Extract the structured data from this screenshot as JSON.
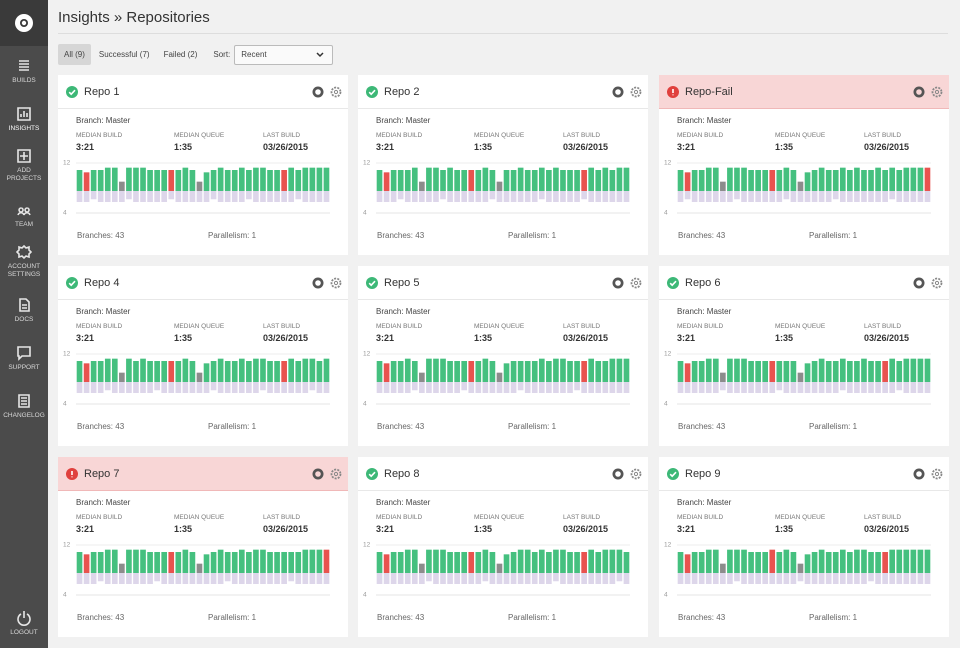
{
  "sidebar": {
    "items": [
      "BUILDS",
      "INSIGHTS",
      "ADD PROJECTS",
      "TEAM",
      "ACCOUNT SETTINGS",
      "DOCS",
      "SUPPORT",
      "CHANGELOG"
    ],
    "logout": "LOGOUT"
  },
  "header": {
    "title": "Insights » Repositories"
  },
  "filters": {
    "tabs": [
      "All (9)",
      "Successful (7)",
      "Failed (2)"
    ],
    "sort_label": "Sort:",
    "sort_value": "Recent"
  },
  "stat_labels": [
    "MEDIAN BUILD",
    "MEDIAN QUEUE",
    "LAST BUILD"
  ],
  "cards": [
    {
      "name": "Repo 1",
      "status": "success",
      "branch": "Branch: Master",
      "stats": [
        "3:21",
        "1:35",
        "03/26/2015"
      ],
      "branches": "Branches: 43",
      "parallelism": "Parallelism: 1",
      "chart": {
        "ylim": [
          0,
          12
        ],
        "yticks": [
          12
        ],
        "queue_ylim": [
          0,
          4
        ],
        "queue_ticks": [
          4
        ],
        "results": "sfssssnssssssfsssnsssssssssssfssssss",
        "build_times": [
          9,
          8,
          9,
          9,
          10,
          10,
          4,
          10,
          10,
          10,
          9,
          9,
          9,
          9,
          9,
          10,
          9,
          4,
          8,
          9,
          10,
          9,
          9,
          10,
          9,
          10,
          10,
          9,
          9,
          9,
          10,
          9,
          10,
          10,
          10,
          10
        ],
        "queue_times": [
          2,
          2,
          1.5,
          2,
          2,
          2,
          2,
          1.5,
          2,
          2,
          2,
          2,
          2,
          1.5,
          2,
          2,
          2,
          2,
          2,
          1.5,
          2,
          2,
          2,
          2,
          1.5,
          2,
          2,
          2,
          2,
          2,
          2,
          1.5,
          2,
          2,
          2,
          2
        ]
      }
    },
    {
      "name": "Repo 2",
      "status": "success",
      "branch": "Branch: Master",
      "stats": [
        "3:21",
        "1:35",
        "03/26/2015"
      ],
      "branches": "Branches: 43",
      "parallelism": "Parallelism: 1",
      "chart": {
        "ylim": [
          0,
          12
        ],
        "yticks": [
          12
        ],
        "queue_ylim": [
          0,
          4
        ],
        "queue_ticks": [
          4
        ],
        "results": "sfssssnssssssfsssnsssssssssssfssssss",
        "build_times": [
          9,
          8,
          9,
          9,
          9,
          10,
          4,
          10,
          10,
          9,
          10,
          9,
          9,
          9,
          9,
          10,
          9,
          4,
          9,
          9,
          10,
          9,
          9,
          10,
          9,
          10,
          9,
          9,
          9,
          9,
          10,
          9,
          10,
          9,
          10,
          10
        ],
        "queue_times": [
          2,
          2,
          2,
          1.5,
          2,
          2,
          2,
          2,
          2,
          1.5,
          2,
          2,
          2,
          2,
          2,
          2,
          1.5,
          2,
          2,
          2,
          2,
          2,
          2,
          1.5,
          2,
          2,
          2,
          2,
          2,
          1.5,
          2,
          2,
          2,
          2,
          2,
          2
        ]
      }
    },
    {
      "name": "Repo-Fail",
      "status": "failed",
      "branch": "Branch: Master",
      "stats": [
        "3:21",
        "1:35",
        "03/26/2015"
      ],
      "branches": "Branches: 43",
      "parallelism": "Parallelism: 1",
      "chart": {
        "ylim": [
          0,
          12
        ],
        "yticks": [
          12
        ],
        "queue_ylim": [
          0,
          4
        ],
        "queue_ticks": [
          4
        ],
        "results": "sfssssnssssssfsssnsssssssssssssssssf",
        "build_times": [
          9,
          8,
          9,
          9,
          10,
          10,
          4,
          10,
          10,
          10,
          9,
          9,
          9,
          9,
          9,
          10,
          9,
          4,
          8,
          9,
          10,
          9,
          9,
          10,
          9,
          10,
          9,
          9,
          10,
          9,
          10,
          9,
          10,
          10,
          10,
          10
        ],
        "queue_times": [
          2,
          1.5,
          2,
          2,
          2,
          2,
          2,
          2,
          1.5,
          2,
          2,
          2,
          2,
          2,
          2,
          1.5,
          2,
          2,
          2,
          2,
          2,
          2,
          1.5,
          2,
          2,
          2,
          2,
          2,
          2,
          2,
          1.5,
          2,
          2,
          2,
          2,
          2
        ]
      }
    },
    {
      "name": "Repo 4",
      "status": "success",
      "branch": "Branch: Master",
      "stats": [
        "3:21",
        "1:35",
        "03/26/2015"
      ],
      "branches": "Branches: 43",
      "parallelism": "Parallelism: 1",
      "chart": {
        "ylim": [
          0,
          12
        ],
        "yticks": [
          12
        ],
        "queue_ylim": [
          0,
          4
        ],
        "queue_ticks": [
          4
        ],
        "results": "sfssssnssssssfsssnsssssssssssfssssss",
        "build_times": [
          9,
          8,
          9,
          9,
          10,
          10,
          4,
          10,
          9,
          10,
          9,
          9,
          9,
          9,
          9,
          10,
          9,
          4,
          8,
          9,
          10,
          9,
          9,
          10,
          9,
          10,
          10,
          9,
          9,
          9,
          10,
          9,
          10,
          10,
          9,
          10
        ],
        "queue_times": [
          2,
          2,
          2,
          2,
          1.5,
          2,
          2,
          2,
          2,
          2,
          2,
          1.5,
          2,
          2,
          2,
          2,
          2,
          2,
          2,
          1.5,
          2,
          2,
          2,
          2,
          2,
          2,
          1.5,
          2,
          2,
          2,
          2,
          2,
          2,
          1.5,
          2,
          2
        ]
      }
    },
    {
      "name": "Repo 5",
      "status": "success",
      "branch": "Branch: Master",
      "stats": [
        "3:21",
        "1:35",
        "03/26/2015"
      ],
      "branches": "Branches: 43",
      "parallelism": "Parallelism: 1",
      "chart": {
        "ylim": [
          0,
          12
        ],
        "yticks": [
          12
        ],
        "queue_ylim": [
          0,
          4
        ],
        "queue_ticks": [
          4
        ],
        "results": "sfssssnssssssfsssnsssssssssssfssssss",
        "build_times": [
          9,
          8,
          9,
          9,
          10,
          9,
          4,
          10,
          10,
          10,
          9,
          9,
          9,
          9,
          9,
          10,
          9,
          4,
          8,
          9,
          9,
          9,
          9,
          10,
          9,
          10,
          10,
          9,
          9,
          9,
          10,
          9,
          9,
          10,
          10,
          10
        ],
        "queue_times": [
          2,
          2,
          2,
          2,
          2,
          1.5,
          2,
          2,
          2,
          2,
          2,
          2,
          1.5,
          2,
          2,
          2,
          2,
          2,
          2,
          2,
          1.5,
          2,
          2,
          2,
          2,
          2,
          2,
          2,
          1.5,
          2,
          2,
          2,
          2,
          2,
          2,
          2
        ]
      }
    },
    {
      "name": "Repo 6",
      "status": "success",
      "branch": "Branch: Master",
      "stats": [
        "3:21",
        "1:35",
        "03/26/2015"
      ],
      "branches": "Branches: 43",
      "parallelism": "Parallelism: 1",
      "chart": {
        "ylim": [
          0,
          12
        ],
        "yticks": [
          12
        ],
        "queue_ylim": [
          0,
          4
        ],
        "queue_ticks": [
          4
        ],
        "results": "sfssssnssssssfsssnsssssssssssfssssss",
        "build_times": [
          9,
          8,
          9,
          9,
          10,
          10,
          4,
          10,
          10,
          10,
          9,
          9,
          9,
          9,
          9,
          9,
          9,
          4,
          8,
          9,
          10,
          9,
          9,
          10,
          9,
          9,
          10,
          9,
          9,
          9,
          10,
          9,
          10,
          10,
          10,
          10
        ],
        "queue_times": [
          2,
          2,
          2,
          2,
          2,
          2,
          1.5,
          2,
          2,
          2,
          2,
          2,
          2,
          2,
          1.5,
          2,
          2,
          2,
          2,
          2,
          2,
          2,
          2,
          1.5,
          2,
          2,
          2,
          2,
          2,
          2,
          2,
          1.5,
          2,
          2,
          2,
          2
        ]
      }
    },
    {
      "name": "Repo 7",
      "status": "failed",
      "branch": "Branch: Master",
      "stats": [
        "3:21",
        "1:35",
        "03/26/2015"
      ],
      "branches": "Branches: 43",
      "parallelism": "Parallelism: 1",
      "chart": {
        "ylim": [
          0,
          12
        ],
        "yticks": [
          12
        ],
        "queue_ylim": [
          0,
          4
        ],
        "queue_ticks": [
          4
        ],
        "results": "sfssssnssssssfsssnsssssssssssssssssf",
        "build_times": [
          9,
          8,
          9,
          9,
          10,
          10,
          4,
          10,
          10,
          10,
          9,
          9,
          9,
          9,
          9,
          10,
          9,
          4,
          8,
          9,
          10,
          9,
          9,
          10,
          9,
          10,
          10,
          9,
          9,
          9,
          9,
          9,
          10,
          10,
          10,
          10
        ],
        "queue_times": [
          2,
          2,
          2,
          1.5,
          2,
          2,
          2,
          2,
          2,
          2,
          2,
          1.5,
          2,
          2,
          2,
          2,
          2,
          2,
          2,
          2,
          2,
          1.5,
          2,
          2,
          2,
          2,
          2,
          2,
          2,
          2,
          1.5,
          2,
          2,
          2,
          2,
          2
        ]
      }
    },
    {
      "name": "Repo 8",
      "status": "success",
      "branch": "Branch: Master",
      "stats": [
        "3:21",
        "1:35",
        "03/26/2015"
      ],
      "branches": "Branches: 43",
      "parallelism": "Parallelism: 1",
      "chart": {
        "ylim": [
          0,
          12
        ],
        "yticks": [
          12
        ],
        "queue_ylim": [
          0,
          4
        ],
        "queue_ticks": [
          4
        ],
        "results": "sfssssnssssssfsssnsssssssssssfssssss",
        "build_times": [
          9,
          8,
          9,
          9,
          10,
          10,
          4,
          10,
          10,
          10,
          9,
          9,
          9,
          9,
          9,
          10,
          9,
          4,
          8,
          9,
          10,
          10,
          9,
          10,
          9,
          10,
          10,
          9,
          9,
          9,
          10,
          9,
          10,
          10,
          10,
          9
        ],
        "queue_times": [
          2,
          2,
          2,
          2,
          2,
          2,
          2,
          1.5,
          2,
          2,
          2,
          2,
          2,
          2,
          2,
          1.5,
          2,
          2,
          2,
          2,
          2,
          2,
          2,
          2,
          2,
          1.5,
          2,
          2,
          2,
          2,
          2,
          2,
          2,
          2,
          1.5,
          2
        ]
      }
    },
    {
      "name": "Repo 9",
      "status": "success",
      "branch": "Branch: Master",
      "stats": [
        "3:21",
        "1:35",
        "03/26/2015"
      ],
      "branches": "Branches: 43",
      "parallelism": "Parallelism: 1",
      "chart": {
        "ylim": [
          0,
          12
        ],
        "yticks": [
          12
        ],
        "queue_ylim": [
          0,
          4
        ],
        "queue_ticks": [
          4
        ],
        "results": "sfssssnssssssfsssnsssssssssssfssssss",
        "build_times": [
          9,
          8,
          9,
          9,
          10,
          10,
          4,
          10,
          10,
          10,
          9,
          9,
          9,
          10,
          9,
          10,
          9,
          4,
          8,
          9,
          10,
          9,
          9,
          10,
          9,
          10,
          10,
          9,
          9,
          9,
          10,
          10,
          10,
          10,
          10,
          10
        ],
        "queue_times": [
          2,
          2,
          2,
          2,
          2,
          2,
          2,
          2,
          1.5,
          2,
          2,
          2,
          2,
          2,
          2,
          2,
          2,
          1.5,
          2,
          2,
          2,
          2,
          2,
          2,
          2,
          2,
          2,
          1.5,
          2,
          2,
          2,
          2,
          2,
          2,
          2,
          2
        ]
      }
    }
  ]
}
